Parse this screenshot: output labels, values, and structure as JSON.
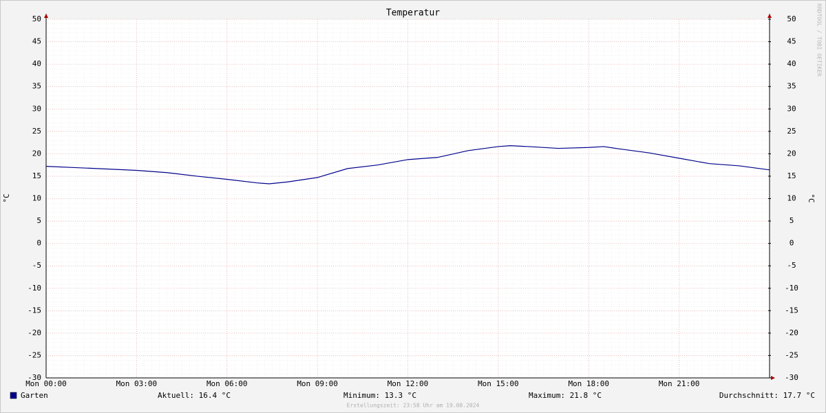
{
  "chart_data": {
    "type": "line",
    "title": "Temperatur",
    "y_label": "°C",
    "y2_label": "°C",
    "x": [
      0,
      1,
      2,
      3,
      4,
      5,
      6,
      7,
      7.4,
      8,
      9,
      10,
      11,
      12,
      13,
      14,
      15,
      15.4,
      16,
      17,
      18,
      18.5,
      19,
      20,
      21,
      22,
      23,
      24
    ],
    "xlim": [
      0,
      24
    ],
    "xticks": [
      {
        "value": 0,
        "label": "Mon 00:00"
      },
      {
        "value": 3,
        "label": "Mon 03:00"
      },
      {
        "value": 6,
        "label": "Mon 06:00"
      },
      {
        "value": 9,
        "label": "Mon 09:00"
      },
      {
        "value": 12,
        "label": "Mon 12:00"
      },
      {
        "value": 15,
        "label": "Mon 15:00"
      },
      {
        "value": 18,
        "label": "Mon 18:00"
      },
      {
        "value": 21,
        "label": "Mon 21:00"
      }
    ],
    "series": [
      {
        "name": "Garten",
        "color": "#00008b",
        "values": [
          17.2,
          16.9,
          16.6,
          16.3,
          15.8,
          15.0,
          14.3,
          13.5,
          13.3,
          13.7,
          14.7,
          16.7,
          17.5,
          18.7,
          19.2,
          20.7,
          21.6,
          21.8,
          21.6,
          21.2,
          21.4,
          21.6,
          21.1,
          20.2,
          19.0,
          17.8,
          17.3,
          16.4
        ]
      }
    ],
    "ylim": [
      -30,
      50
    ],
    "yticks": [
      -30,
      -25,
      -20,
      -15,
      -10,
      -5,
      0,
      5,
      10,
      15,
      20,
      25,
      30,
      35,
      40,
      45,
      50
    ],
    "y2lim": [
      -30,
      50
    ],
    "y2ticks": [
      -30,
      -25,
      -20,
      -15,
      -10,
      -5,
      0,
      5,
      10,
      15,
      20,
      25,
      30,
      35,
      40,
      45,
      50
    ],
    "grid": true,
    "legend_stats": [
      "Aktuell: 16.4 °C",
      "Minimum: 13.3 °C",
      "Maximum: 21.8 °C",
      "Durchschnitt: 17.7 °C"
    ],
    "footer": "Erstellungszeit: 23:58 Uhr am 19.08.2024",
    "watermark": "RRDTOOL / TOBI OETIKER"
  }
}
